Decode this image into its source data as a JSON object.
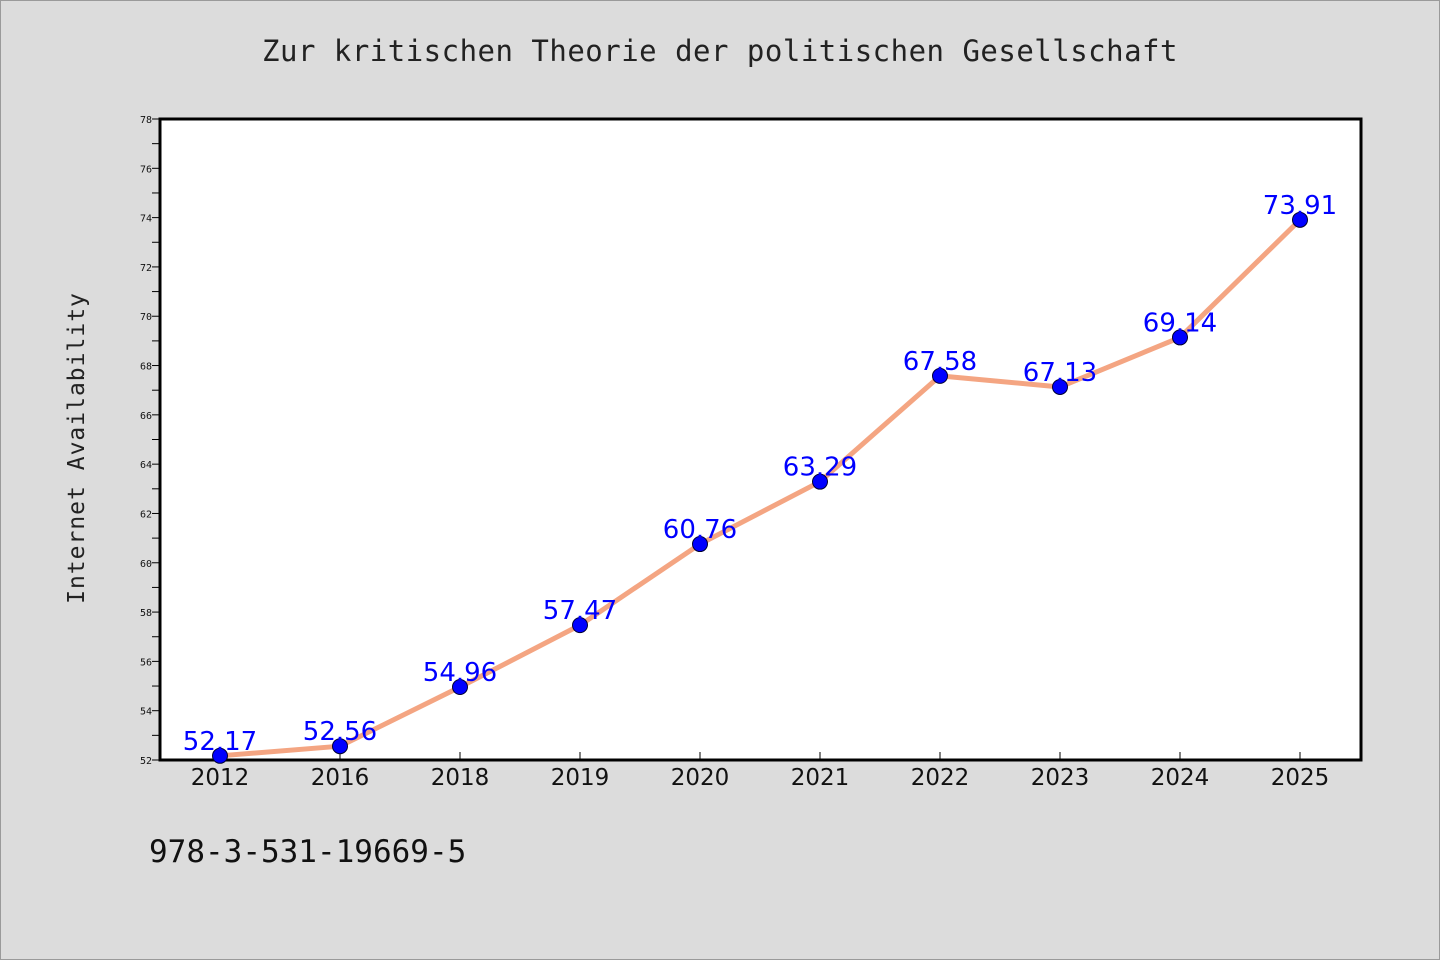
{
  "chart_data": {
    "type": "line",
    "title": "Zur kritischen Theorie der politischen Gesellschaft",
    "xlabel": "",
    "ylabel": "Internet Availability",
    "categories": [
      "2012",
      "2016",
      "2018",
      "2019",
      "2020",
      "2021",
      "2022",
      "2023",
      "2024",
      "2025"
    ],
    "series": [
      {
        "values": [
          52.17,
          52.56,
          54.96,
          57.47,
          60.76,
          63.29,
          67.58,
          67.13,
          69.14,
          73.91
        ],
        "labels": [
          "52.17",
          "52.56",
          "54.96",
          "57.47",
          "60.76",
          "63.29",
          "67.58",
          "67.13",
          "69.14",
          "73.91"
        ],
        "line_color": "#f4a582",
        "marker_color": "#0000ff"
      }
    ],
    "ylim": [
      52,
      78
    ],
    "yticks": [
      "52",
      "54",
      "56",
      "58",
      "60",
      "62",
      "64",
      "66",
      "68",
      "70",
      "72",
      "74",
      "76",
      "78"
    ],
    "grid": false,
    "legend": "none"
  },
  "footer_text": "978-3-531-19669-5",
  "colors": {
    "background": "#dcdcdc",
    "plot_area": "#ffffff",
    "line": "#f4a582",
    "marker": "#0000ff",
    "data_label": "#0000ff"
  }
}
